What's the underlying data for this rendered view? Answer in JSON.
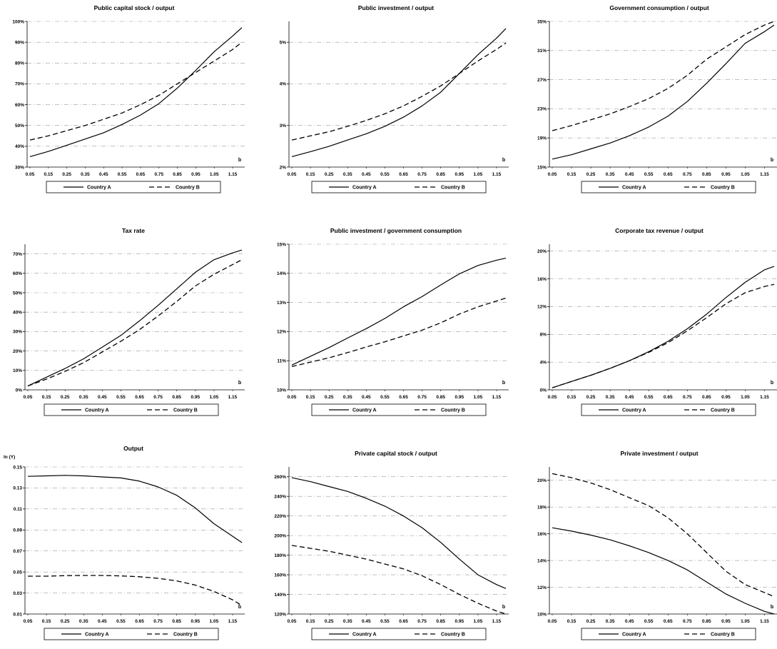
{
  "legend": {
    "series_a": "Country A",
    "series_b": "Country B"
  },
  "x_axis_letter": "b",
  "chart_data": [
    {
      "type": "line",
      "title": "Public capital stock / output",
      "ylabel": "",
      "x": [
        0.05,
        0.15,
        0.25,
        0.35,
        0.45,
        0.55,
        0.65,
        0.75,
        0.85,
        0.95,
        1.05,
        1.15,
        1.2
      ],
      "x_ticks": [
        "0.05",
        "0.15",
        "0.25",
        "0.35",
        "0.45",
        "0.55",
        "0.65",
        "0.75",
        "0.85",
        "0.95",
        "1.05",
        "1.15"
      ],
      "y_ticks": [
        "30%",
        "40%",
        "50%",
        "60%",
        "70%",
        "80%",
        "90%",
        "100%"
      ],
      "ylim": [
        30,
        100
      ],
      "series": [
        {
          "name": "Country A",
          "values": [
            35,
            37.5,
            40.5,
            43.5,
            46.5,
            50.5,
            55,
            60.5,
            68,
            76.5,
            85.5,
            93,
            97
          ]
        },
        {
          "name": "Country B",
          "values": [
            43,
            45,
            47.5,
            50,
            53,
            56,
            60,
            64.5,
            70,
            75.5,
            81,
            86.5,
            90
          ]
        }
      ]
    },
    {
      "type": "line",
      "title": "Public investment / output",
      "ylabel": "",
      "x": [
        0.05,
        0.15,
        0.25,
        0.35,
        0.45,
        0.55,
        0.65,
        0.75,
        0.85,
        0.95,
        1.05,
        1.15,
        1.2
      ],
      "x_ticks": [
        "0.05",
        "0.15",
        "0.25",
        "0.35",
        "0.45",
        "0.55",
        "0.65",
        "0.75",
        "0.85",
        "0.95",
        "1.05",
        "1.15"
      ],
      "y_ticks": [
        "2%",
        "3%",
        "4%",
        "5%"
      ],
      "ylim": [
        2,
        5.5
      ],
      "series": [
        {
          "name": "Country A",
          "values": [
            2.25,
            2.37,
            2.5,
            2.65,
            2.8,
            2.98,
            3.2,
            3.47,
            3.8,
            4.25,
            4.7,
            5.1,
            5.33
          ]
        },
        {
          "name": "Country B",
          "values": [
            2.65,
            2.75,
            2.85,
            2.98,
            3.12,
            3.28,
            3.47,
            3.7,
            3.95,
            4.25,
            4.55,
            4.83,
            4.98
          ]
        }
      ]
    },
    {
      "type": "line",
      "title": "Government consumption / output",
      "ylabel": "",
      "x": [
        0.05,
        0.15,
        0.25,
        0.35,
        0.45,
        0.55,
        0.65,
        0.75,
        0.85,
        0.95,
        1.05,
        1.15,
        1.2
      ],
      "x_ticks": [
        "0.05",
        "0.15",
        "0.25",
        "0.35",
        "0.45",
        "0.55",
        "0.65",
        "0.75",
        "0.85",
        "0.95",
        "1.05",
        "1.15"
      ],
      "y_ticks": [
        "15%",
        "19%",
        "23%",
        "27%",
        "31%",
        "35%"
      ],
      "ylim": [
        15,
        35
      ],
      "series": [
        {
          "name": "Country A",
          "values": [
            16.1,
            16.7,
            17.5,
            18.3,
            19.3,
            20.5,
            22,
            24,
            26.5,
            29.2,
            32,
            33.6,
            34.5
          ]
        },
        {
          "name": "Country B",
          "values": [
            20,
            20.7,
            21.5,
            22.3,
            23.3,
            24.4,
            25.8,
            27.6,
            29.8,
            31.5,
            33.2,
            34.5,
            35
          ]
        }
      ]
    },
    {
      "type": "line",
      "title": "Tax rate",
      "ylabel": "",
      "x": [
        0.05,
        0.15,
        0.25,
        0.35,
        0.45,
        0.55,
        0.65,
        0.75,
        0.85,
        0.95,
        1.05,
        1.15,
        1.2
      ],
      "x_ticks": [
        "0.05",
        "0.15",
        "0.25",
        "0.35",
        "0.45",
        "0.55",
        "0.65",
        "0.75",
        "0.85",
        "0.95",
        "1.05",
        "1.15"
      ],
      "y_ticks": [
        "0%",
        "10%",
        "20%",
        "30%",
        "40%",
        "50%",
        "60%",
        "70%"
      ],
      "ylim": [
        0,
        75
      ],
      "series": [
        {
          "name": "Country A",
          "values": [
            2,
            6.5,
            11,
            16,
            22,
            28,
            35.5,
            43.5,
            52,
            60.5,
            67,
            70.5,
            72
          ]
        },
        {
          "name": "Country B",
          "values": [
            2,
            5.5,
            9.5,
            14,
            19.5,
            25,
            31,
            38,
            45.5,
            53.5,
            59.5,
            64.5,
            67
          ]
        }
      ]
    },
    {
      "type": "line",
      "title": "Public investment / government consumption",
      "ylabel": "",
      "x": [
        0.05,
        0.15,
        0.25,
        0.35,
        0.45,
        0.55,
        0.65,
        0.75,
        0.85,
        0.95,
        1.05,
        1.15,
        1.2
      ],
      "x_ticks": [
        "0.05",
        "0.15",
        "0.25",
        "0.35",
        "0.45",
        "0.55",
        "0.65",
        "0.75",
        "0.85",
        "0.95",
        "1.05",
        "1.15"
      ],
      "y_ticks": [
        "10%",
        "11%",
        "12%",
        "13%",
        "14%",
        "15%"
      ],
      "ylim": [
        10,
        15
      ],
      "series": [
        {
          "name": "Country A",
          "values": [
            10.85,
            11.15,
            11.45,
            11.78,
            12.1,
            12.45,
            12.85,
            13.2,
            13.6,
            13.98,
            14.27,
            14.45,
            14.52
          ]
        },
        {
          "name": "Country B",
          "values": [
            10.8,
            10.95,
            11.1,
            11.28,
            11.47,
            11.65,
            11.85,
            12.05,
            12.3,
            12.6,
            12.85,
            13.05,
            13.15
          ]
        }
      ]
    },
    {
      "type": "line",
      "title": "Corporate tax revenue / output",
      "ylabel": "",
      "x": [
        0.05,
        0.15,
        0.25,
        0.35,
        0.45,
        0.55,
        0.65,
        0.75,
        0.85,
        0.95,
        1.05,
        1.15,
        1.2
      ],
      "x_ticks": [
        "0.05",
        "0.15",
        "0.25",
        "0.35",
        "0.45",
        "0.55",
        "0.65",
        "0.75",
        "0.85",
        "0.95",
        "1.05",
        "1.15"
      ],
      "y_ticks": [
        "0%",
        "4%",
        "8%",
        "12%",
        "16%",
        "20%"
      ],
      "ylim": [
        0,
        21
      ],
      "series": [
        {
          "name": "Country A",
          "values": [
            0.3,
            1.2,
            2.1,
            3.1,
            4.2,
            5.5,
            7,
            8.8,
            10.9,
            13.3,
            15.5,
            17.3,
            17.8
          ]
        },
        {
          "name": "Country B",
          "values": [
            0.3,
            1.2,
            2.1,
            3.1,
            4.2,
            5.4,
            6.8,
            8.5,
            10.4,
            12.4,
            14,
            14.9,
            15.2
          ]
        }
      ]
    },
    {
      "type": "line",
      "title": "Output",
      "ylabel": "ln (Y)",
      "x": [
        0.05,
        0.15,
        0.25,
        0.35,
        0.45,
        0.55,
        0.65,
        0.75,
        0.85,
        0.95,
        1.05,
        1.15,
        1.2
      ],
      "x_ticks": [
        "0.05",
        "0.15",
        "0.25",
        "0.35",
        "0.45",
        "0.55",
        "0.65",
        "0.75",
        "0.85",
        "0.95",
        "1.05",
        "1.15"
      ],
      "y_ticks": [
        "0.01",
        "0.03",
        "0.05",
        "0.07",
        "0.09",
        "0.11",
        "0.13",
        "0.15"
      ],
      "ylim": [
        0.01,
        0.15
      ],
      "series": [
        {
          "name": "Country A",
          "values": [
            0.141,
            0.1415,
            0.142,
            0.1415,
            0.1405,
            0.1395,
            0.1365,
            0.131,
            0.123,
            0.111,
            0.096,
            0.084,
            0.078
          ]
        },
        {
          "name": "Country B",
          "values": [
            0.046,
            0.046,
            0.0465,
            0.0467,
            0.0467,
            0.0463,
            0.0455,
            0.044,
            0.0415,
            0.0375,
            0.0315,
            0.0235,
            0.018
          ]
        }
      ]
    },
    {
      "type": "line",
      "title": "Private capital stock / output",
      "ylabel": "",
      "x": [
        0.05,
        0.15,
        0.25,
        0.35,
        0.45,
        0.55,
        0.65,
        0.75,
        0.85,
        0.95,
        1.05,
        1.15,
        1.2
      ],
      "x_ticks": [
        "0.05",
        "0.15",
        "0.25",
        "0.35",
        "0.45",
        "0.55",
        "0.65",
        "0.75",
        "0.85",
        "0.95",
        "1.05",
        "1.15"
      ],
      "y_ticks": [
        "120%",
        "140%",
        "160%",
        "180%",
        "200%",
        "220%",
        "240%",
        "260%"
      ],
      "ylim": [
        120,
        270
      ],
      "series": [
        {
          "name": "Country A",
          "values": [
            259,
            255,
            250,
            245,
            238,
            230,
            220,
            208,
            193,
            176,
            160,
            150,
            146
          ]
        },
        {
          "name": "Country B",
          "values": [
            190,
            187,
            184,
            180,
            176,
            171,
            166,
            159,
            150,
            140,
            131,
            123,
            120
          ]
        }
      ]
    },
    {
      "type": "line",
      "title": "Private investment / output",
      "ylabel": "",
      "x": [
        0.05,
        0.15,
        0.25,
        0.35,
        0.45,
        0.55,
        0.65,
        0.75,
        0.85,
        0.95,
        1.05,
        1.15,
        1.2
      ],
      "x_ticks": [
        "0.05",
        "0.15",
        "0.25",
        "0.35",
        "0.45",
        "0.55",
        "0.65",
        "0.75",
        "0.85",
        "0.95",
        "1.05",
        "1.15"
      ],
      "y_ticks": [
        "10%",
        "12%",
        "14%",
        "16%",
        "18%",
        "20%"
      ],
      "ylim": [
        10,
        21
      ],
      "series": [
        {
          "name": "Country A",
          "values": [
            16.45,
            16.2,
            15.9,
            15.55,
            15.1,
            14.6,
            14,
            13.3,
            12.4,
            11.5,
            10.8,
            10.2,
            10
          ]
        },
        {
          "name": "Country B",
          "values": [
            20.5,
            20.2,
            19.8,
            19.3,
            18.7,
            18.1,
            17.2,
            16,
            14.6,
            13.2,
            12.2,
            11.6,
            11.3
          ]
        }
      ]
    }
  ]
}
